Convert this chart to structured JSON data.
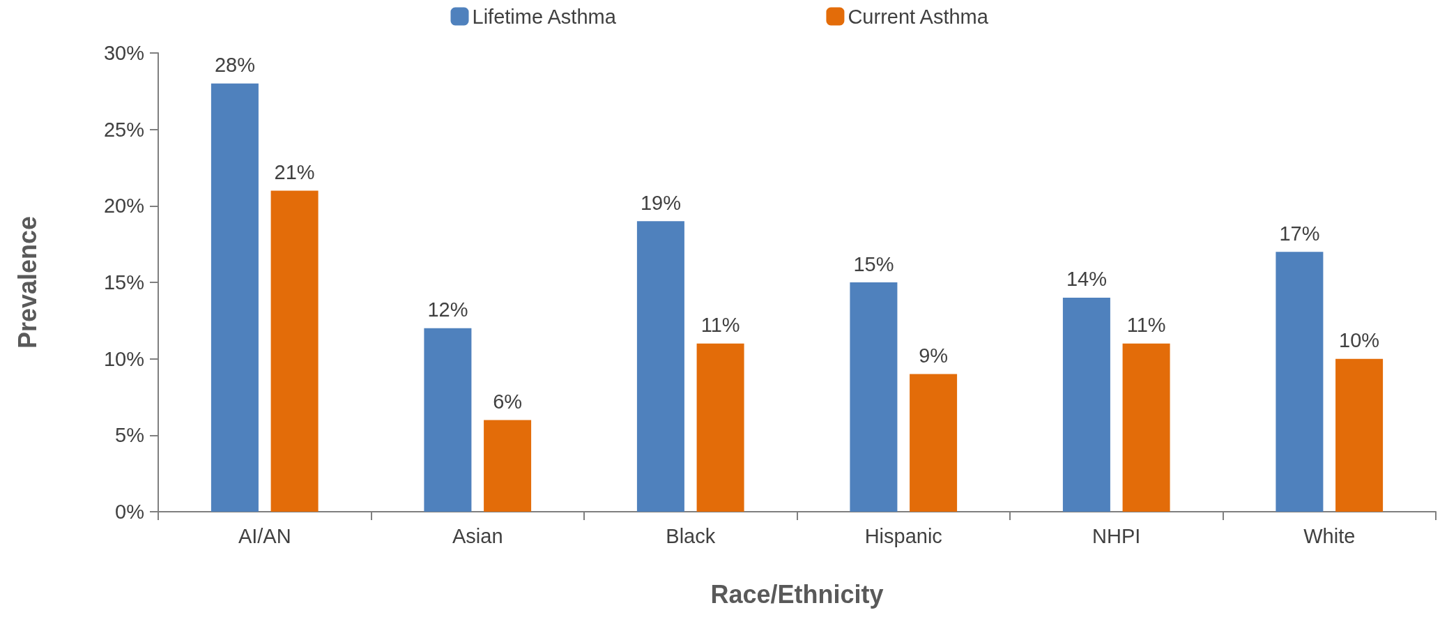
{
  "chart_data": {
    "type": "bar",
    "xlabel": "Race/Ethnicity",
    "ylabel": "Prevalence",
    "categories": [
      "AI/AN",
      "Asian",
      "Black",
      "Hispanic",
      "NHPI",
      "White"
    ],
    "series": [
      {
        "name": "Lifetime Asthma",
        "color": "#4f81bd",
        "values": [
          28,
          12,
          19,
          15,
          14,
          17
        ],
        "value_labels": [
          "28%",
          "12%",
          "19%",
          "15%",
          "14%",
          "17%"
        ]
      },
      {
        "name": "Current Asthma",
        "color": "#e36c09",
        "values": [
          21,
          6,
          11,
          9,
          11,
          10
        ],
        "value_labels": [
          "21%",
          "6%",
          "11%",
          "9%",
          "11%",
          "10%"
        ]
      }
    ],
    "ylim": [
      0,
      30
    ],
    "yticks": [
      {
        "value": 0,
        "label": "0%"
      },
      {
        "value": 5,
        "label": "5%"
      },
      {
        "value": 10,
        "label": "10%"
      },
      {
        "value": 15,
        "label": "15%"
      },
      {
        "value": 20,
        "label": "20%"
      },
      {
        "value": 25,
        "label": "25%"
      },
      {
        "value": 30,
        "label": "30%"
      }
    ],
    "grid": false,
    "legend": "top"
  }
}
